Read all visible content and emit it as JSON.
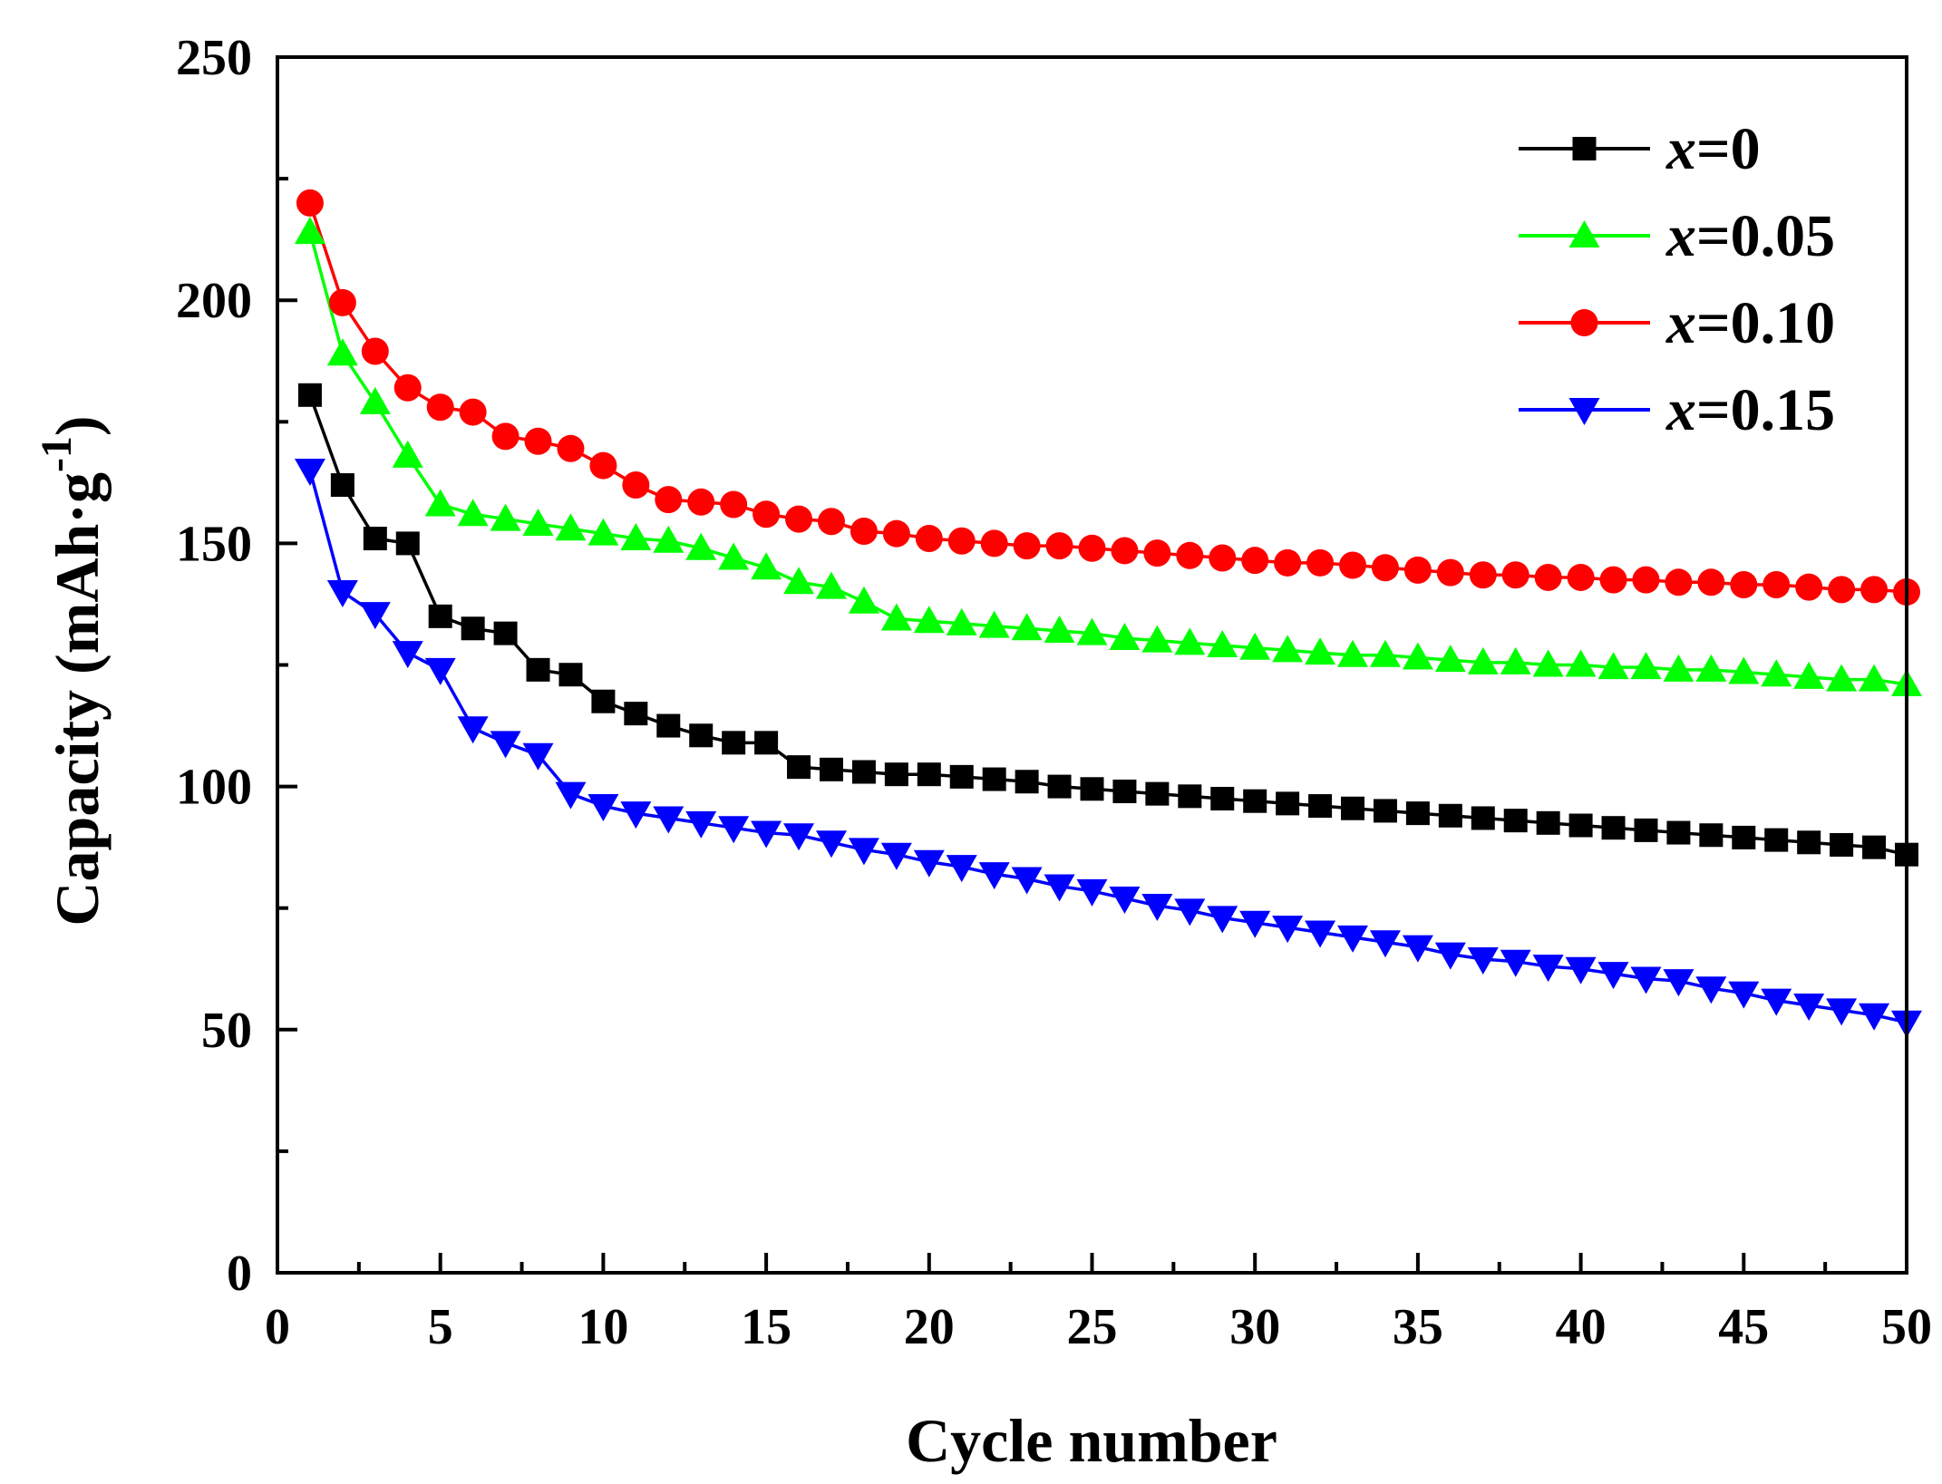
{
  "chart_data": {
    "type": "line",
    "title": "",
    "xlabel": "Cycle number",
    "ylabel_main": "Capacity (mAh·g",
    "ylabel_sup": "-1",
    "ylabel_close": ")",
    "xlim": [
      0,
      50
    ],
    "ylim": [
      0,
      250
    ],
    "xticks": [
      0,
      5,
      10,
      15,
      20,
      25,
      30,
      35,
      40,
      45,
      50
    ],
    "xtick_labels": [
      "0",
      "5",
      "10",
      "15",
      "20",
      "25",
      "30",
      "35",
      "40",
      "45",
      "50"
    ],
    "yticks": [
      0,
      50,
      100,
      150,
      200,
      250
    ],
    "ytick_labels": [
      "0",
      "50",
      "100",
      "150",
      "200",
      "250"
    ],
    "y_minor_step": 25,
    "grid": false,
    "legend_position": "top-right",
    "x": [
      1,
      2,
      3,
      4,
      5,
      6,
      7,
      8,
      9,
      10,
      11,
      12,
      13,
      14,
      15,
      16,
      17,
      18,
      19,
      20,
      21,
      22,
      23,
      24,
      25,
      26,
      27,
      28,
      29,
      30,
      31,
      32,
      33,
      34,
      35,
      36,
      37,
      38,
      39,
      40,
      41,
      42,
      43,
      44,
      45,
      46,
      47,
      48,
      49,
      50
    ],
    "series": [
      {
        "name": "x=0",
        "var": "x",
        "value_label": "=0",
        "color": "#000000",
        "marker": "square",
        "values": [
          180.5,
          162,
          151,
          150,
          135,
          132.5,
          131.5,
          124,
          123,
          117.5,
          115,
          112.5,
          110.5,
          109,
          109,
          104,
          103.5,
          103,
          102.5,
          102.5,
          102,
          101.5,
          101,
          100,
          99.5,
          99,
          98.5,
          98,
          97.5,
          97,
          96.5,
          96,
          95.5,
          95,
          94.5,
          94,
          93.5,
          93,
          92.5,
          92,
          91.5,
          91,
          90.5,
          90,
          89.5,
          89,
          88.5,
          88,
          87.5,
          86
        ]
      },
      {
        "name": "x=0.05",
        "var": "x",
        "value_label": "=0.05",
        "color": "#00ff00",
        "marker": "triangle-up",
        "values": [
          214,
          189,
          179,
          168,
          158,
          156,
          155,
          154,
          153,
          152,
          151,
          150.5,
          149,
          147,
          145,
          142,
          141,
          138,
          134.5,
          134,
          133.5,
          133,
          132.5,
          132,
          131.5,
          130.5,
          130,
          129.5,
          129,
          128.5,
          128,
          127.5,
          127,
          127,
          126.5,
          126,
          125.5,
          125.5,
          125,
          125,
          124.5,
          124.5,
          124,
          124,
          123.5,
          123,
          122.5,
          122,
          122,
          121
        ]
      },
      {
        "name": "x=0.10",
        "var": "x",
        "value_label": "=0.10",
        "color": "#ff0000",
        "marker": "circle",
        "values": [
          220,
          199.5,
          189.5,
          182,
          178,
          177,
          172,
          171,
          169.5,
          166,
          162,
          159,
          158.5,
          158,
          156,
          155,
          154.5,
          152.5,
          152,
          151,
          150.5,
          150,
          149.5,
          149.5,
          149,
          148.5,
          148,
          147.5,
          147,
          146.5,
          146,
          146,
          145.5,
          145,
          144.5,
          144,
          143.5,
          143.5,
          143,
          143,
          142.5,
          142.5,
          142,
          142,
          141.5,
          141.5,
          141,
          140.5,
          140.5,
          140
        ]
      },
      {
        "name": "x=0.15",
        "var": "x",
        "value_label": "=0.15",
        "color": "#0000ff",
        "marker": "triangle-down",
        "values": [
          165,
          140,
          135.5,
          127.5,
          124,
          112,
          109,
          106.5,
          98.5,
          96,
          94.5,
          93.5,
          92.5,
          91.5,
          90.5,
          90,
          88.5,
          87,
          86,
          84.5,
          83.5,
          82,
          81,
          79.5,
          78.5,
          77,
          75.5,
          74.5,
          73,
          72,
          71,
          70,
          69,
          68,
          67,
          65.5,
          64.5,
          64,
          63,
          62.5,
          61.5,
          60.5,
          60,
          58.5,
          57.5,
          56,
          55,
          54,
          53,
          51.5
        ]
      }
    ]
  }
}
